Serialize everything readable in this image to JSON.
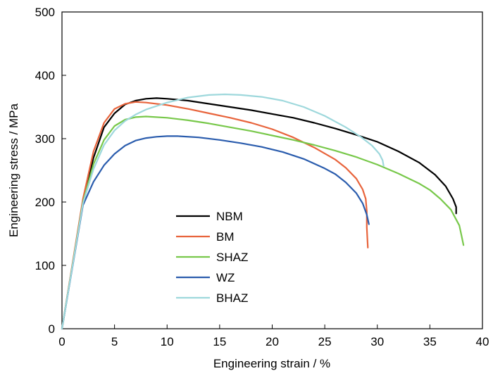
{
  "chart_data": {
    "type": "line",
    "title": "",
    "xlabel": "Engineering strain / %",
    "ylabel": "Engineering stress / MPa",
    "xlim": [
      0,
      40
    ],
    "ylim": [
      0,
      500
    ],
    "xticks": [
      0,
      5,
      10,
      15,
      20,
      25,
      30,
      35,
      40
    ],
    "yticks": [
      0,
      100,
      200,
      300,
      400,
      500
    ],
    "grid": false,
    "legend_position": "center-left",
    "series": [
      {
        "name": "NBM",
        "color": "#000000",
        "points": [
          [
            0,
            0
          ],
          [
            2,
            200
          ],
          [
            3,
            270
          ],
          [
            4,
            318
          ],
          [
            5,
            340
          ],
          [
            6,
            354
          ],
          [
            7,
            360
          ],
          [
            8,
            363
          ],
          [
            9,
            364
          ],
          [
            10,
            363
          ],
          [
            12,
            360
          ],
          [
            14,
            355
          ],
          [
            16,
            350
          ],
          [
            18,
            345
          ],
          [
            20,
            339
          ],
          [
            22,
            333
          ],
          [
            24,
            325
          ],
          [
            26,
            316
          ],
          [
            28,
            306
          ],
          [
            30,
            295
          ],
          [
            32,
            280
          ],
          [
            34,
            262
          ],
          [
            35.5,
            243
          ],
          [
            36.5,
            225
          ],
          [
            37.2,
            205
          ],
          [
            37.5,
            192
          ],
          [
            37.5,
            182
          ]
        ]
      },
      {
        "name": "BM",
        "color": "#e8643c",
        "points": [
          [
            0,
            0
          ],
          [
            2,
            205
          ],
          [
            3,
            280
          ],
          [
            4,
            325
          ],
          [
            5,
            347
          ],
          [
            6,
            355
          ],
          [
            7,
            358
          ],
          [
            8,
            357
          ],
          [
            10,
            353
          ],
          [
            12,
            347
          ],
          [
            14,
            340
          ],
          [
            16,
            333
          ],
          [
            18,
            325
          ],
          [
            20,
            315
          ],
          [
            22,
            302
          ],
          [
            24,
            286
          ],
          [
            26,
            267
          ],
          [
            27,
            254
          ],
          [
            28,
            237
          ],
          [
            28.6,
            220
          ],
          [
            28.9,
            205
          ],
          [
            29,
            185
          ],
          [
            29,
            160
          ],
          [
            29.1,
            128
          ]
        ]
      },
      {
        "name": "SHAZ",
        "color": "#78c84a",
        "points": [
          [
            0,
            0
          ],
          [
            2,
            200
          ],
          [
            3,
            260
          ],
          [
            4,
            298
          ],
          [
            5,
            320
          ],
          [
            6,
            330
          ],
          [
            7,
            334
          ],
          [
            8,
            335
          ],
          [
            10,
            333
          ],
          [
            12,
            329
          ],
          [
            14,
            324
          ],
          [
            16,
            318
          ],
          [
            18,
            312
          ],
          [
            20,
            305
          ],
          [
            22,
            298
          ],
          [
            24,
            290
          ],
          [
            26,
            281
          ],
          [
            28,
            271
          ],
          [
            30,
            259
          ],
          [
            32,
            245
          ],
          [
            34,
            229
          ],
          [
            35,
            219
          ],
          [
            36,
            205
          ],
          [
            37,
            188
          ],
          [
            37.8,
            163
          ],
          [
            38,
            148
          ],
          [
            38.2,
            132
          ]
        ]
      },
      {
        "name": "WZ",
        "color": "#2a5cad",
        "points": [
          [
            0,
            0
          ],
          [
            2,
            195
          ],
          [
            3,
            232
          ],
          [
            4,
            258
          ],
          [
            5,
            276
          ],
          [
            6,
            289
          ],
          [
            7,
            297
          ],
          [
            8,
            301
          ],
          [
            9,
            303
          ],
          [
            10,
            304
          ],
          [
            11,
            304
          ],
          [
            13,
            302
          ],
          [
            15,
            298
          ],
          [
            17,
            293
          ],
          [
            19,
            287
          ],
          [
            21,
            279
          ],
          [
            23,
            268
          ],
          [
            25,
            253
          ],
          [
            26,
            244
          ],
          [
            27,
            231
          ],
          [
            28,
            214
          ],
          [
            28.6,
            198
          ],
          [
            29,
            180
          ],
          [
            29.2,
            165
          ]
        ]
      },
      {
        "name": "BHAZ",
        "color": "#9ed8dc",
        "points": [
          [
            0,
            0
          ],
          [
            2,
            198
          ],
          [
            3,
            252
          ],
          [
            4,
            290
          ],
          [
            5,
            313
          ],
          [
            6,
            328
          ],
          [
            7,
            338
          ],
          [
            8,
            346
          ],
          [
            10,
            357
          ],
          [
            12,
            365
          ],
          [
            14,
            369
          ],
          [
            15.5,
            370
          ],
          [
            17,
            369
          ],
          [
            19,
            366
          ],
          [
            21,
            360
          ],
          [
            23,
            350
          ],
          [
            25,
            336
          ],
          [
            27,
            318
          ],
          [
            28.5,
            302
          ],
          [
            29.5,
            289
          ],
          [
            30.2,
            276
          ],
          [
            30.5,
            266
          ],
          [
            30.6,
            257
          ]
        ]
      }
    ]
  }
}
